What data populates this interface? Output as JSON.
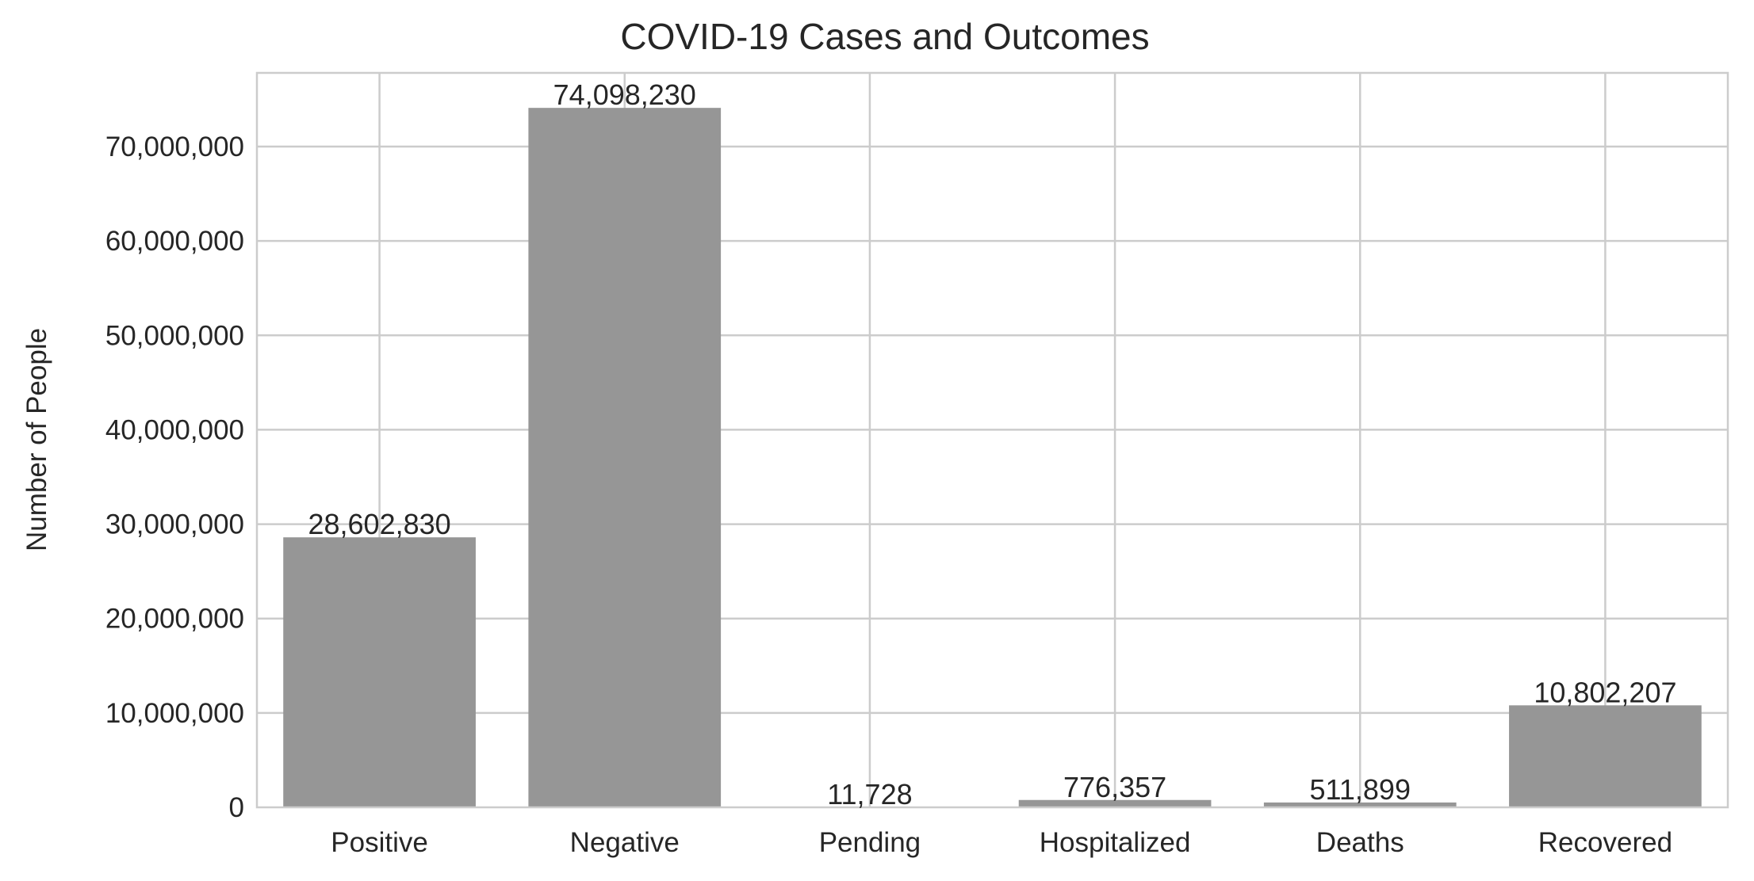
{
  "chart_data": {
    "type": "bar",
    "title": "COVID-19 Cases and Outcomes",
    "xlabel": "",
    "ylabel": "Number of People",
    "categories": [
      "Positive",
      "Negative",
      "Pending",
      "Hospitalized",
      "Deaths",
      "Recovered"
    ],
    "values": [
      28602830,
      74098230,
      11728,
      776357,
      511899,
      10802207
    ],
    "data_labels": [
      "28,602,830",
      "74,098,230",
      "11,728",
      "776,357",
      "511,899",
      "10,802,207"
    ],
    "ylim": [
      0,
      77804142
    ],
    "yticks": [
      0,
      10000000,
      20000000,
      30000000,
      40000000,
      50000000,
      60000000,
      70000000
    ],
    "ytick_labels": [
      "0",
      "10,000,000",
      "20,000,000",
      "30,000,000",
      "40,000,000",
      "50,000,000",
      "60,000,000",
      "70,000,000"
    ],
    "grid": true,
    "bar_color": "#969696",
    "grid_color": "#cccccc",
    "text_color": "#262626"
  }
}
